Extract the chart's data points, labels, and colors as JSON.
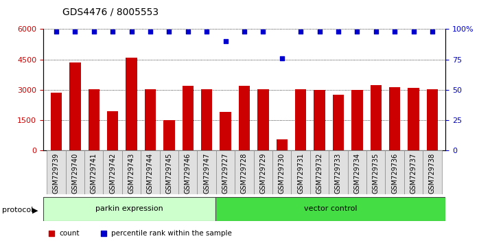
{
  "title": "GDS4476 / 8005553",
  "samples": [
    "GSM729739",
    "GSM729740",
    "GSM729741",
    "GSM729742",
    "GSM729743",
    "GSM729744",
    "GSM729745",
    "GSM729746",
    "GSM729747",
    "GSM729727",
    "GSM729728",
    "GSM729729",
    "GSM729730",
    "GSM729731",
    "GSM729732",
    "GSM729733",
    "GSM729734",
    "GSM729735",
    "GSM729736",
    "GSM729737",
    "GSM729738"
  ],
  "counts": [
    2850,
    4350,
    3050,
    1950,
    4600,
    3050,
    1500,
    3200,
    3050,
    1900,
    3200,
    3050,
    550,
    3050,
    3000,
    2750,
    3000,
    3250,
    3150,
    3100,
    3050
  ],
  "percentile_ranks": [
    98,
    98,
    98,
    98,
    98,
    98,
    98,
    98,
    98,
    90,
    98,
    98,
    76,
    98,
    98,
    98,
    98,
    98,
    98,
    98,
    98
  ],
  "group1_label": "parkin expression",
  "group2_label": "vector control",
  "group1_count": 9,
  "group2_count": 12,
  "bar_color": "#cc0000",
  "dot_color": "#0000cc",
  "group1_bg": "#ccffcc",
  "group2_bg": "#44dd44",
  "protocol_label": "protocol",
  "legend_count_label": "count",
  "legend_pct_label": "percentile rank within the sample",
  "ylim_left": [
    0,
    6000
  ],
  "ylim_right": [
    0,
    100
  ],
  "yticks_left": [
    0,
    1500,
    3000,
    4500,
    6000
  ],
  "ytick_labels_left": [
    "0",
    "1500",
    "3000",
    "4500",
    "6000"
  ],
  "yticks_right": [
    0,
    25,
    50,
    75,
    100
  ],
  "ytick_labels_right": [
    "0",
    "25",
    "50",
    "75",
    "100%"
  ]
}
